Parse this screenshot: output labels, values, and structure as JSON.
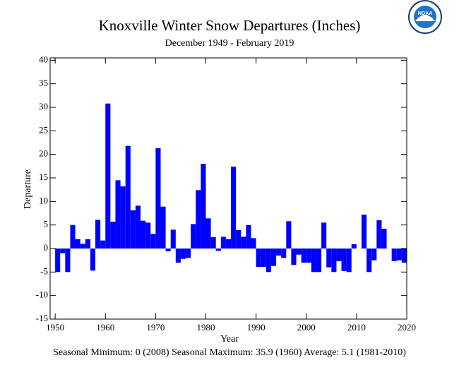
{
  "chart_data": {
    "type": "bar",
    "title": "Knoxville Winter Snow Departures (Inches)",
    "subtitle": "December 1949 - February 2019",
    "xlabel": "Year",
    "ylabel": "Departure",
    "note": "Seasonal Minimum: 0 (2008) Seasonal Maximum: 35.9 (1960) Average: 5.1 (1981-2010)",
    "logo_text": "NOAA",
    "color": "#0000ff",
    "x": [
      1950,
      1951,
      1952,
      1953,
      1954,
      1955,
      1956,
      1957,
      1958,
      1959,
      1960,
      1961,
      1962,
      1963,
      1964,
      1965,
      1966,
      1967,
      1968,
      1969,
      1970,
      1971,
      1972,
      1973,
      1974,
      1975,
      1976,
      1977,
      1978,
      1979,
      1980,
      1981,
      1982,
      1983,
      1984,
      1985,
      1986,
      1987,
      1988,
      1989,
      1990,
      1991,
      1992,
      1993,
      1994,
      1995,
      1996,
      1997,
      1998,
      1999,
      2000,
      2001,
      2002,
      2003,
      2004,
      2005,
      2006,
      2007,
      2008,
      2009,
      2010,
      2011,
      2012,
      2013,
      2014,
      2015,
      2016,
      2017,
      2018,
      2019
    ],
    "values": [
      -5,
      -1,
      -5,
      5,
      2,
      1,
      2,
      -4.7,
      6.1,
      1.7,
      30.8,
      5.7,
      14.5,
      13.2,
      21.8,
      8.1,
      9.1,
      5.9,
      5.5,
      3.1,
      21.3,
      8.9,
      -0.6,
      4,
      -3,
      -2.2,
      -2,
      5.2,
      12.4,
      18,
      6.4,
      2.4,
      -0.5,
      2.5,
      2,
      17.4,
      3.9,
      2.5,
      5,
      2.2,
      -3.9,
      -3.9,
      -5,
      -3.7,
      -1.5,
      -2,
      5.8,
      -3.5,
      -1.3,
      -3,
      -3,
      -5,
      -5,
      5.5,
      -4,
      -5,
      -2.7,
      -4.8,
      -5,
      0.9,
      0,
      7.2,
      -5,
      -2.5,
      6,
      4.2,
      0,
      -2.7,
      -2.5,
      -3
    ],
    "xlim": [
      1949,
      2020
    ],
    "ylim": [
      -15,
      40.5
    ],
    "xticks": [
      1950,
      1960,
      1970,
      1980,
      1990,
      2000,
      2010,
      2020
    ],
    "yticks": [
      -15,
      -10,
      -5,
      0,
      5,
      10,
      15,
      20,
      25,
      30,
      35,
      40
    ]
  }
}
